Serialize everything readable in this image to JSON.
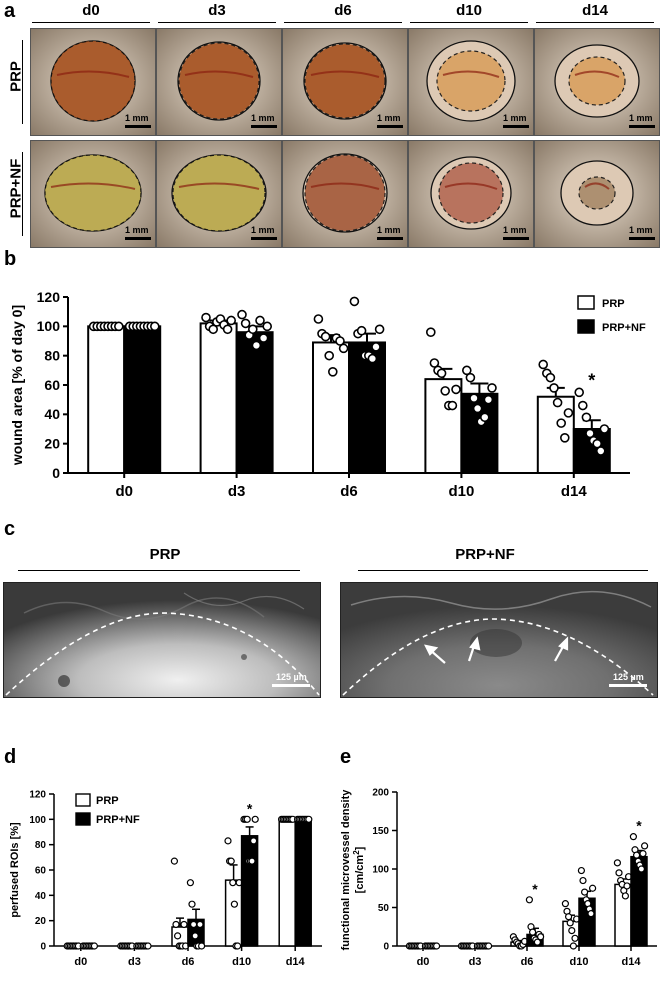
{
  "panels": {
    "a": "a",
    "b": "b",
    "c": "c",
    "d": "d",
    "e": "e"
  },
  "panel_a": {
    "days": [
      "d0",
      "d3",
      "d6",
      "d10",
      "d14"
    ],
    "rows": [
      "PRP",
      "PRP+NF"
    ],
    "scale_label": "1 mm",
    "colors": {
      "skin": "#c9b49a",
      "wound_fresh": "#a5511f",
      "wound_late": "#d9a060",
      "wound_nf": "#b9a84a"
    }
  },
  "chart_b": {
    "ylabel": "wound area [% of day 0]",
    "categories": [
      "d0",
      "d3",
      "d6",
      "d10",
      "d14"
    ],
    "legend": [
      "PRP",
      "PRP+NF"
    ],
    "star": "*"
  },
  "panel_c": {
    "labels": [
      "PRP",
      "PRP+NF"
    ],
    "scale_label": "125 µm"
  },
  "chart_d": {
    "ylabel": "perfused ROIs [%]",
    "categories": [
      "d0",
      "d3",
      "d6",
      "d10",
      "d14"
    ],
    "legend": [
      "PRP",
      "PRP+NF"
    ],
    "star": "*"
  },
  "chart_e": {
    "ylabel_line1": "functional microvessel density",
    "ylabel_line2": "[cm/cm",
    "ylabel_sup": "2",
    "ylabel_end": "]",
    "categories": [
      "d0",
      "d3",
      "d6",
      "d10",
      "d14"
    ],
    "star": "*"
  },
  "chart_data": [
    {
      "type": "bar",
      "ylabel": "wound area [% of day 0]",
      "categories": [
        "d0",
        "d3",
        "d6",
        "d10",
        "d14"
      ],
      "ylim": [
        0,
        120
      ],
      "yticks": [
        0,
        20,
        40,
        60,
        80,
        100,
        120
      ],
      "legend_placement": "top-right",
      "series": [
        {
          "name": "PRP",
          "values": [
            100,
            102,
            89,
            64,
            52
          ],
          "errors": [
            0,
            2,
            5,
            7,
            6
          ],
          "fill": "#ffffff"
        },
        {
          "name": "PRP+NF",
          "values": [
            100,
            96,
            89,
            54,
            30
          ],
          "errors": [
            0,
            4,
            6,
            7,
            6
          ],
          "fill": "#000000"
        }
      ],
      "points": [
        [
          [
            100,
            100,
            100,
            100,
            100,
            100,
            100,
            100
          ],
          [
            100,
            100,
            100,
            100,
            100,
            100,
            100,
            100
          ]
        ],
        [
          [
            106,
            100,
            98,
            103,
            105,
            101,
            98,
            104
          ],
          [
            108,
            102,
            94,
            98,
            87,
            104,
            92,
            100
          ]
        ],
        [
          [
            105,
            95,
            93,
            80,
            69,
            92,
            90,
            85
          ],
          [
            117,
            95,
            97,
            80,
            80,
            78,
            86,
            98
          ]
        ],
        [
          [
            96,
            75,
            70,
            68,
            56,
            46,
            46,
            57
          ],
          [
            70,
            65,
            51,
            44,
            35,
            38,
            50,
            58
          ]
        ],
        [
          [
            74,
            68,
            65,
            58,
            48,
            34,
            24,
            41
          ],
          [
            55,
            46,
            38,
            27,
            22,
            20,
            15,
            30
          ]
        ]
      ],
      "significance": [
        "",
        "",
        "",
        "",
        "*"
      ]
    },
    {
      "type": "bar",
      "ylabel": "perfused ROIs [%]",
      "categories": [
        "d0",
        "d3",
        "d6",
        "d10",
        "d14"
      ],
      "ylim": [
        0,
        120
      ],
      "yticks": [
        0,
        20,
        40,
        60,
        80,
        100,
        120
      ],
      "legend_placement": "top-left",
      "series": [
        {
          "name": "PRP",
          "values": [
            0,
            0,
            15,
            52,
            100
          ],
          "errors": [
            0,
            0,
            7,
            12,
            0
          ],
          "fill": "#ffffff"
        },
        {
          "name": "PRP+NF",
          "values": [
            0,
            0,
            21,
            87,
            100
          ],
          "errors": [
            0,
            0,
            8,
            7,
            0
          ],
          "fill": "#000000"
        }
      ],
      "points": [
        [
          [
            0,
            0,
            0,
            0,
            0,
            0,
            0,
            0
          ],
          [
            0,
            0,
            0,
            0,
            0,
            0,
            0,
            0
          ]
        ],
        [
          [
            0,
            0,
            0,
            0,
            0,
            0,
            0,
            0
          ],
          [
            0,
            0,
            0,
            0,
            0,
            0,
            0,
            0
          ]
        ],
        [
          [
            67,
            17,
            8,
            0,
            0,
            0,
            17,
            0
          ],
          [
            50,
            33,
            17,
            8,
            0,
            0,
            17,
            0
          ]
        ],
        [
          [
            83,
            67,
            67,
            50,
            33,
            0,
            0,
            50
          ],
          [
            100,
            100,
            100,
            67,
            67,
            67,
            83,
            100
          ]
        ],
        [
          [
            100,
            100,
            100,
            100,
            100,
            100,
            100,
            100
          ],
          [
            100,
            100,
            100,
            100,
            100,
            100,
            100,
            100
          ]
        ]
      ],
      "significance": [
        "",
        "",
        "",
        "*",
        ""
      ]
    },
    {
      "type": "bar",
      "ylabel": "functional microvessel density [cm/cm2]",
      "categories": [
        "d0",
        "d3",
        "d6",
        "d10",
        "d14"
      ],
      "ylim": [
        0,
        200
      ],
      "yticks": [
        0,
        50,
        100,
        150,
        200
      ],
      "series": [
        {
          "name": "PRP",
          "values": [
            0,
            0,
            5,
            32,
            80
          ],
          "errors": [
            0,
            0,
            2,
            8,
            7
          ],
          "fill": "#ffffff"
        },
        {
          "name": "PRP+NF",
          "values": [
            0,
            0,
            15,
            62,
            116
          ],
          "errors": [
            0,
            0,
            8,
            9,
            8
          ],
          "fill": "#000000"
        }
      ],
      "points": [
        [
          [
            0,
            0,
            0,
            0,
            0,
            0,
            0,
            0
          ],
          [
            0,
            0,
            0,
            0,
            0,
            0,
            0,
            0
          ]
        ],
        [
          [
            0,
            0,
            0,
            0,
            0,
            0,
            0,
            0
          ],
          [
            0,
            0,
            0,
            0,
            0,
            0,
            0,
            0
          ]
        ],
        [
          [
            12,
            8,
            5,
            3,
            0,
            0,
            2,
            6
          ],
          [
            60,
            25,
            18,
            10,
            8,
            5,
            15,
            12
          ]
        ],
        [
          [
            55,
            45,
            38,
            30,
            20,
            0,
            10,
            35
          ],
          [
            98,
            85,
            70,
            60,
            55,
            48,
            42,
            75
          ]
        ],
        [
          [
            108,
            95,
            85,
            80,
            72,
            65,
            78,
            90
          ],
          [
            142,
            125,
            118,
            110,
            105,
            100,
            120,
            130
          ]
        ]
      ],
      "significance": [
        "",
        "",
        "*",
        "",
        "*"
      ]
    }
  ]
}
